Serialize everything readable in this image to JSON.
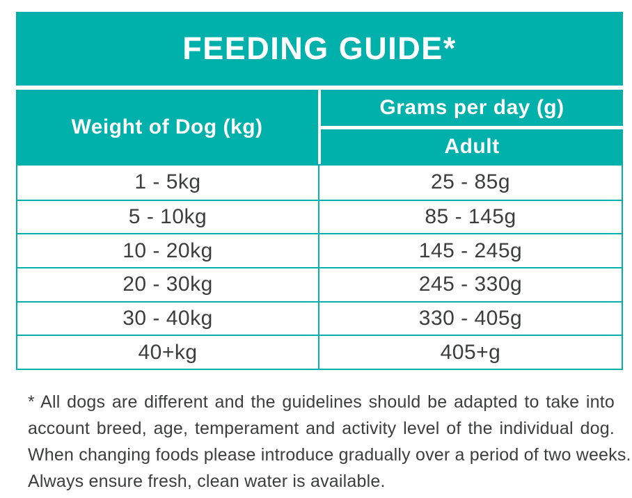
{
  "colors": {
    "teal": "#00b0ab",
    "text_dark": "#3c3d3d"
  },
  "banner": {
    "title": "FEEDING GUIDE*"
  },
  "table": {
    "weight_header": "Weight of Dog (kg)",
    "grams_header": "Grams per day (g)",
    "grams_subheader": "Adult",
    "rows": [
      {
        "weight": "1 - 5kg",
        "grams": "25 - 85g"
      },
      {
        "weight": "5 - 10kg",
        "grams": "85 - 145g"
      },
      {
        "weight": "10 - 20kg",
        "grams": "145 - 245g"
      },
      {
        "weight": "20 - 30kg",
        "grams": "245 - 330g"
      },
      {
        "weight": "30 - 40kg",
        "grams": "330 - 405g"
      },
      {
        "weight": "40+kg",
        "grams": "405+g"
      }
    ]
  },
  "footnote": {
    "lines": [
      "* All dogs are different and the guidelines should be adapted to take into",
      "account breed, age, temperament and activity level of the individual dog.",
      "When changing foods please introduce gradually over a period of two weeks.",
      "Always ensure fresh, clean water is available."
    ]
  }
}
